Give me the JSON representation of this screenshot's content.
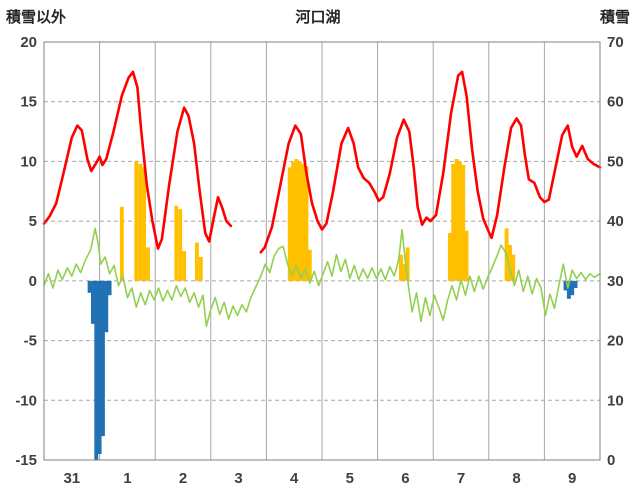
{
  "header": {
    "left": "積雪以外",
    "title": "河口湖",
    "right": "積雪"
  },
  "chart_data": {
    "type": "line",
    "title": "河口湖",
    "left_axis": {
      "label": "積雪以外",
      "min": -15,
      "max": 20,
      "step": 5
    },
    "right_axis": {
      "label": "積雪",
      "min": 0,
      "max": 70,
      "step": 10
    },
    "x_axis": {
      "labels": [
        "31",
        "1",
        "2",
        "3",
        "4",
        "5",
        "6",
        "7",
        "8",
        "9"
      ],
      "min": 0,
      "max": 10
    },
    "grid": true,
    "legend": "none",
    "style": {
      "grid_color": "#a6a6a6",
      "border_color": "#808080",
      "tick_color": "#404040",
      "red": "#ff0000",
      "green": "#92d050",
      "orange": "#ffc000",
      "blue": "#2171b5"
    },
    "series": [
      {
        "name": "orange-bars",
        "type": "bar",
        "color": "#ffc000",
        "axis": "left",
        "bar_width": 0.07,
        "points": [
          [
            1.4,
            6.2
          ],
          [
            1.66,
            10.0
          ],
          [
            1.73,
            9.8
          ],
          [
            1.8,
            9.5
          ],
          [
            1.87,
            2.8
          ],
          [
            2.38,
            6.3
          ],
          [
            2.45,
            6.0
          ],
          [
            2.52,
            2.5
          ],
          [
            2.75,
            3.2
          ],
          [
            2.82,
            2.0
          ],
          [
            4.42,
            9.5
          ],
          [
            4.48,
            10.0
          ],
          [
            4.54,
            10.2
          ],
          [
            4.6,
            10.0
          ],
          [
            4.66,
            9.8
          ],
          [
            4.72,
            9.6
          ],
          [
            4.78,
            2.6
          ],
          [
            6.42,
            2.2
          ],
          [
            6.48,
            1.4
          ],
          [
            6.54,
            2.8
          ],
          [
            7.3,
            4.0
          ],
          [
            7.36,
            9.8
          ],
          [
            7.42,
            10.2
          ],
          [
            7.48,
            10.0
          ],
          [
            7.54,
            9.7
          ],
          [
            7.6,
            4.2
          ],
          [
            8.32,
            4.4
          ],
          [
            8.38,
            3.0
          ],
          [
            8.44,
            2.2
          ]
        ]
      },
      {
        "name": "blue-bars",
        "type": "bar",
        "color": "#2171b5",
        "axis": "left",
        "bar_width": 0.07,
        "points": [
          [
            0.82,
            -1.0
          ],
          [
            0.88,
            -3.6
          ],
          [
            0.94,
            -15.0
          ],
          [
            1.0,
            -14.5
          ],
          [
            1.06,
            -13.0
          ],
          [
            1.12,
            -4.3
          ],
          [
            1.18,
            -1.2
          ],
          [
            9.38,
            -0.8
          ],
          [
            9.44,
            -1.5
          ],
          [
            9.5,
            -1.2
          ],
          [
            9.56,
            -0.6
          ]
        ]
      },
      {
        "name": "green-line",
        "type": "line",
        "color": "#92d050",
        "width": 1.6,
        "axis": "left",
        "points": [
          [
            0,
            -0.4
          ],
          [
            0.08,
            0.6
          ],
          [
            0.16,
            -0.6
          ],
          [
            0.25,
            0.9
          ],
          [
            0.33,
            0.1
          ],
          [
            0.42,
            1.1
          ],
          [
            0.5,
            0.4
          ],
          [
            0.58,
            1.4
          ],
          [
            0.66,
            0.7
          ],
          [
            0.75,
            1.8
          ],
          [
            0.84,
            2.6
          ],
          [
            0.92,
            4.4
          ],
          [
            0.97,
            3.2
          ],
          [
            1.02,
            1.4
          ],
          [
            1.1,
            2.0
          ],
          [
            1.18,
            0.6
          ],
          [
            1.26,
            1.3
          ],
          [
            1.34,
            -0.4
          ],
          [
            1.42,
            0.4
          ],
          [
            1.5,
            -1.4
          ],
          [
            1.58,
            -0.6
          ],
          [
            1.66,
            -2.2
          ],
          [
            1.74,
            -1.0
          ],
          [
            1.82,
            -2.0
          ],
          [
            1.9,
            -0.8
          ],
          [
            1.98,
            -1.6
          ],
          [
            2.06,
            -0.6
          ],
          [
            2.14,
            -1.7
          ],
          [
            2.22,
            -0.8
          ],
          [
            2.3,
            -1.6
          ],
          [
            2.38,
            -0.4
          ],
          [
            2.46,
            -1.3
          ],
          [
            2.54,
            -0.6
          ],
          [
            2.62,
            -1.8
          ],
          [
            2.7,
            -1.0
          ],
          [
            2.78,
            -2.2
          ],
          [
            2.86,
            -1.2
          ],
          [
            2.92,
            -3.8
          ],
          [
            3.0,
            -2.4
          ],
          [
            3.08,
            -1.4
          ],
          [
            3.16,
            -2.8
          ],
          [
            3.24,
            -1.8
          ],
          [
            3.32,
            -3.2
          ],
          [
            3.4,
            -2.1
          ],
          [
            3.48,
            -2.9
          ],
          [
            3.56,
            -2.0
          ],
          [
            3.64,
            -2.6
          ],
          [
            3.72,
            -1.4
          ],
          [
            3.8,
            -0.6
          ],
          [
            3.9,
            0.4
          ],
          [
            3.98,
            1.4
          ],
          [
            4.06,
            0.7
          ],
          [
            4.14,
            2.1
          ],
          [
            4.22,
            2.7
          ],
          [
            4.3,
            2.9
          ],
          [
            4.38,
            1.4
          ],
          [
            4.46,
            0.4
          ],
          [
            4.54,
            1.3
          ],
          [
            4.62,
            0.2
          ],
          [
            4.7,
            1.0
          ],
          [
            4.78,
            -0.2
          ],
          [
            4.86,
            0.8
          ],
          [
            4.94,
            -0.4
          ],
          [
            5.02,
            0.6
          ],
          [
            5.1,
            1.6
          ],
          [
            5.18,
            0.4
          ],
          [
            5.26,
            2.2
          ],
          [
            5.34,
            0.8
          ],
          [
            5.42,
            1.8
          ],
          [
            5.5,
            0.2
          ],
          [
            5.58,
            1.3
          ],
          [
            5.66,
            0.1
          ],
          [
            5.74,
            1.0
          ],
          [
            5.82,
            0.2
          ],
          [
            5.9,
            1.1
          ],
          [
            5.98,
            0.2
          ],
          [
            6.06,
            1.0
          ],
          [
            6.14,
            0.1
          ],
          [
            6.22,
            1.2
          ],
          [
            6.3,
            0.4
          ],
          [
            6.38,
            1.8
          ],
          [
            6.44,
            4.3
          ],
          [
            6.5,
            1.6
          ],
          [
            6.56,
            -0.6
          ],
          [
            6.62,
            -2.6
          ],
          [
            6.7,
            -1.0
          ],
          [
            6.78,
            -3.4
          ],
          [
            6.86,
            -1.4
          ],
          [
            6.94,
            -2.9
          ],
          [
            7.02,
            -1.2
          ],
          [
            7.1,
            -2.2
          ],
          [
            7.18,
            -3.3
          ],
          [
            7.26,
            -1.6
          ],
          [
            7.34,
            -0.4
          ],
          [
            7.42,
            -1.6
          ],
          [
            7.5,
            0.1
          ],
          [
            7.58,
            -1.2
          ],
          [
            7.66,
            0.4
          ],
          [
            7.74,
            -0.9
          ],
          [
            7.82,
            0.4
          ],
          [
            7.9,
            -0.7
          ],
          [
            7.98,
            0.3
          ],
          [
            8.06,
            1.1
          ],
          [
            8.14,
            2.0
          ],
          [
            8.22,
            3.0
          ],
          [
            8.3,
            2.4
          ],
          [
            8.38,
            1.0
          ],
          [
            8.46,
            -0.4
          ],
          [
            8.54,
            0.9
          ],
          [
            8.62,
            -0.9
          ],
          [
            8.7,
            0.4
          ],
          [
            8.78,
            -1.1
          ],
          [
            8.86,
            0.2
          ],
          [
            8.94,
            -0.6
          ],
          [
            9.02,
            -2.9
          ],
          [
            9.1,
            -1.1
          ],
          [
            9.18,
            -2.3
          ],
          [
            9.26,
            -0.4
          ],
          [
            9.34,
            1.4
          ],
          [
            9.42,
            -0.6
          ],
          [
            9.5,
            0.9
          ],
          [
            9.58,
            0.2
          ],
          [
            9.66,
            0.7
          ],
          [
            9.74,
            0.1
          ],
          [
            9.82,
            0.6
          ],
          [
            9.9,
            0.3
          ],
          [
            10,
            0.6
          ]
        ]
      },
      {
        "name": "red-line",
        "type": "line",
        "color": "#ff0000",
        "width": 2.6,
        "axis": "left",
        "points": [
          [
            0,
            4.8
          ],
          [
            0.1,
            5.4
          ],
          [
            0.22,
            6.5
          ],
          [
            0.35,
            9.0
          ],
          [
            0.5,
            12.0
          ],
          [
            0.6,
            13.0
          ],
          [
            0.68,
            12.6
          ],
          [
            0.78,
            10.2
          ],
          [
            0.85,
            9.2
          ],
          [
            0.93,
            9.8
          ],
          [
            1.0,
            10.4
          ],
          [
            1.05,
            9.7
          ],
          [
            1.12,
            10.2
          ],
          [
            1.25,
            12.5
          ],
          [
            1.4,
            15.5
          ],
          [
            1.52,
            17.0
          ],
          [
            1.6,
            17.5
          ],
          [
            1.68,
            16.2
          ],
          [
            1.75,
            12.5
          ],
          [
            1.85,
            8.0
          ],
          [
            1.95,
            5.0
          ],
          [
            2.05,
            2.7
          ],
          [
            2.12,
            3.5
          ],
          [
            2.25,
            8.0
          ],
          [
            2.4,
            12.5
          ],
          [
            2.52,
            14.5
          ],
          [
            2.6,
            13.8
          ],
          [
            2.7,
            11.5
          ],
          [
            2.8,
            7.5
          ],
          [
            2.9,
            4.0
          ],
          [
            2.97,
            3.3
          ],
          [
            3.05,
            5.2
          ],
          [
            3.13,
            7.0
          ],
          [
            3.2,
            6.2
          ],
          [
            3.28,
            5.0
          ],
          [
            3.36,
            4.6
          ],
          null,
          [
            3.9,
            2.4
          ],
          [
            3.97,
            2.8
          ],
          [
            4.1,
            4.5
          ],
          [
            4.25,
            8.0
          ],
          [
            4.4,
            11.5
          ],
          [
            4.52,
            13.0
          ],
          [
            4.62,
            12.3
          ],
          [
            4.72,
            9.0
          ],
          [
            4.82,
            6.5
          ],
          [
            4.92,
            5.0
          ],
          [
            5.0,
            4.3
          ],
          [
            5.08,
            4.8
          ],
          [
            5.2,
            7.5
          ],
          [
            5.35,
            11.5
          ],
          [
            5.47,
            12.8
          ],
          [
            5.57,
            11.5
          ],
          [
            5.65,
            9.5
          ],
          [
            5.75,
            8.6
          ],
          [
            5.85,
            8.2
          ],
          [
            5.95,
            7.4
          ],
          [
            6.02,
            6.7
          ],
          [
            6.1,
            7.0
          ],
          [
            6.22,
            9.0
          ],
          [
            6.35,
            12.0
          ],
          [
            6.47,
            13.5
          ],
          [
            6.57,
            12.5
          ],
          [
            6.65,
            9.5
          ],
          [
            6.72,
            6.2
          ],
          [
            6.8,
            4.7
          ],
          [
            6.88,
            5.3
          ],
          [
            6.95,
            5.0
          ],
          [
            7.05,
            5.5
          ],
          [
            7.18,
            9.0
          ],
          [
            7.32,
            14.0
          ],
          [
            7.45,
            17.2
          ],
          [
            7.52,
            17.5
          ],
          [
            7.6,
            15.5
          ],
          [
            7.7,
            11.0
          ],
          [
            7.8,
            7.5
          ],
          [
            7.9,
            5.2
          ],
          [
            8.0,
            4.1
          ],
          [
            8.05,
            3.6
          ],
          [
            8.15,
            5.5
          ],
          [
            8.28,
            9.5
          ],
          [
            8.4,
            12.8
          ],
          [
            8.5,
            13.6
          ],
          [
            8.58,
            13.0
          ],
          [
            8.65,
            10.5
          ],
          [
            8.72,
            8.5
          ],
          [
            8.82,
            8.2
          ],
          [
            8.92,
            7.0
          ],
          [
            9.0,
            6.6
          ],
          [
            9.08,
            6.8
          ],
          [
            9.2,
            9.5
          ],
          [
            9.32,
            12.2
          ],
          [
            9.42,
            13.0
          ],
          [
            9.5,
            11.2
          ],
          [
            9.58,
            10.4
          ],
          [
            9.68,
            11.3
          ],
          [
            9.78,
            10.2
          ],
          [
            9.88,
            9.8
          ],
          [
            10,
            9.5
          ]
        ]
      }
    ]
  }
}
